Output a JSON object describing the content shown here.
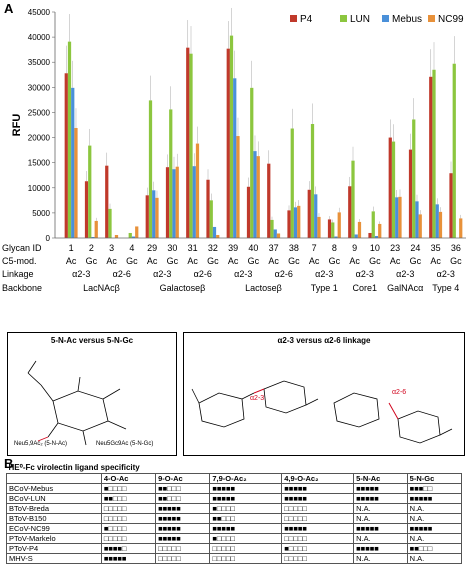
{
  "panel_a_label": "A",
  "panel_b_label": "B",
  "chart_data": {
    "type": "bar",
    "ylabel": "RFU",
    "ylim": [
      0,
      45000
    ],
    "yticks": [
      "0",
      "5000",
      "10000",
      "15000",
      "20000",
      "25000",
      "30000",
      "35000",
      "40000",
      "45000"
    ],
    "legend_position": "top-right",
    "glycan_ids": [
      "1",
      "2",
      "3",
      "4",
      "29",
      "30",
      "31",
      "32",
      "39",
      "40",
      "37",
      "38",
      "7",
      "8",
      "9",
      "10",
      "23",
      "24",
      "35",
      "36"
    ],
    "series": [
      {
        "name": "P4",
        "color": "#c0392b",
        "values": [
          32800,
          11300,
          14400,
          0,
          8500,
          14100,
          37900,
          11600,
          37700,
          10200,
          14800,
          5500,
          9600,
          3700,
          10300,
          1000,
          20000,
          17600,
          32100,
          12900
        ]
      },
      {
        "name": "LUN",
        "color": "#8cc63f",
        "values": [
          39100,
          18400,
          5800,
          1000,
          27400,
          25600,
          36700,
          7500,
          40300,
          29900,
          3600,
          21800,
          22700,
          3100,
          15400,
          5300,
          19200,
          23600,
          33500,
          34700
        ]
      },
      {
        "name": "Mebus",
        "color": "#4a90d9",
        "values": [
          29900,
          200,
          0,
          300,
          9500,
          13700,
          14300,
          2200,
          31800,
          17300,
          1700,
          6100,
          8700,
          300,
          700,
          400,
          8100,
          7300,
          6700,
          0
        ]
      },
      {
        "name": "NC99",
        "color": "#e8913a",
        "values": [
          21900,
          3400,
          600,
          2300,
          8000,
          14200,
          18800,
          600,
          20300,
          16300,
          900,
          6400,
          4200,
          5100,
          3200,
          2800,
          8200,
          4700,
          5200,
          3900
        ]
      }
    ],
    "group_ticks": [
      {
        "c5": [
          "Ac",
          "Gc"
        ],
        "linkage": "α2-3",
        "backbone": "LacNAcβ"
      },
      {
        "c5": [
          "Ac",
          "Gc"
        ],
        "linkage": "α2-6",
        "backbone": ""
      },
      {
        "c5": [
          "Ac",
          "Gc"
        ],
        "linkage": "α2-3",
        "backbone": "Galactoseβ"
      },
      {
        "c5": [
          "Ac",
          "Gc"
        ],
        "linkage": "α2-6",
        "backbone": ""
      },
      {
        "c5": [
          "Ac",
          "Gc"
        ],
        "linkage": "α2-3",
        "backbone": "Lactoseβ"
      },
      {
        "c5": [
          "Ac",
          "Gc"
        ],
        "linkage": "α2-6",
        "backbone": ""
      },
      {
        "c5": [
          "Ac",
          "Gc"
        ],
        "linkage": "α2-3",
        "backbone": "Type 1"
      },
      {
        "c5": [
          "Ac",
          "Gc"
        ],
        "linkage": "α2-3",
        "backbone": "Core1"
      },
      {
        "c5": [
          "Ac",
          "Gc"
        ],
        "linkage": "α2-3",
        "backbone": "GalNAcα"
      },
      {
        "c5": [
          "Ac",
          "Gc"
        ],
        "linkage": "α2-3",
        "backbone": "Type 4"
      }
    ],
    "row_labels": {
      "glycan_id": "Glycan ID",
      "c5": "C5-mod.",
      "linkage": "Linkage",
      "backbone": "Backbone"
    }
  },
  "structures": {
    "left_title": "5-N-Ac versus 5-N-Gc",
    "right_title": "α2-3 versus α2-6 linkage",
    "left_caption_1": "Neu5,9Ac₂ (5-N-Ac)",
    "left_caption_2": "Neu5Gc9Ac (5-N-Gc)",
    "right_red_1": "α2-3",
    "right_red_2": "α2-6"
  },
  "table": {
    "caption": "HE⁰-Fc virolectin ligand specificity",
    "headers": [
      "",
      "4-O-Ac",
      "9-O-Ac",
      "7,9-O-Ac₂",
      "4,9-O-Ac₂",
      "5-N-Ac",
      "5-N-Gc"
    ],
    "rows": [
      [
        "BCoV-Mebus",
        "■□□□□",
        "■■□□□",
        "■■■■■",
        "■■■■■",
        "■■■■■",
        "■■■□□"
      ],
      [
        "BCoV-LUN",
        "■■□□□",
        "■■□□□",
        "■■■■■",
        "■■■■■",
        "■■■■■",
        "■■■■■"
      ],
      [
        "BToV-Breda",
        "□□□□□",
        "■■■■■",
        "■□□□□",
        "□□□□□",
        "N.A.",
        "N.A."
      ],
      [
        "BToV-B150",
        "□□□□□",
        "■■■■■",
        "■■□□□",
        "□□□□□",
        "N.A.",
        "N.A."
      ],
      [
        "ECoV-NC99",
        "■□□□□",
        "■■■■■",
        "■■■■■",
        "■■■■■",
        "■■■■■",
        "■■■■■"
      ],
      [
        "PToV-Markelo",
        "□□□□□",
        "■■■■■",
        "■□□□□",
        "□□□□□",
        "N.A.",
        "N.A."
      ],
      [
        "PToV-P4",
        "■■■■□",
        "□□□□□",
        "□□□□□",
        "■□□□□",
        "■■■■■",
        "■■□□□"
      ],
      [
        "MHV-S",
        "■■■■■",
        "□□□□□",
        "□□□□□",
        "□□□□□",
        "N.A.",
        "N.A."
      ]
    ]
  }
}
